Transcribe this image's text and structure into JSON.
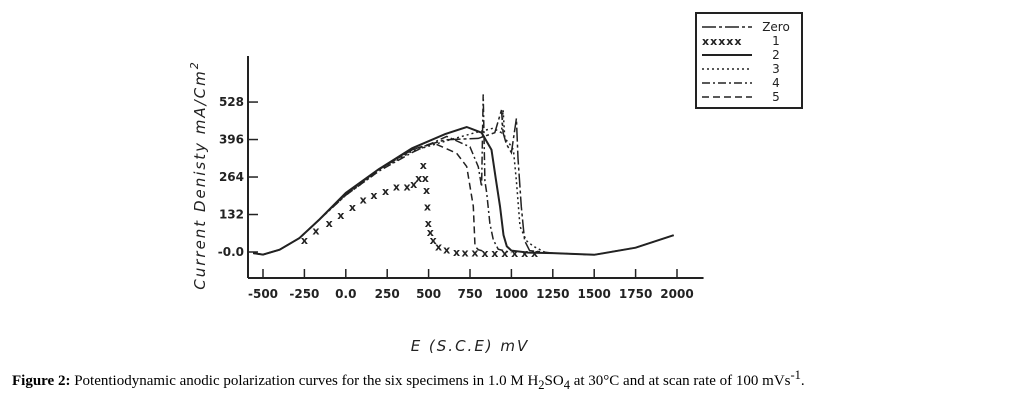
{
  "chart_data": {
    "type": "line",
    "xlabel": "E (S.C.E) mV",
    "ylabel": "Current Denisty mA/Cm",
    "ylabel_sup": "2",
    "xlim": [
      -600,
      2100
    ],
    "ylim": [
      -90,
      690
    ],
    "xticks": [
      -500,
      -250,
      0,
      250,
      500,
      750,
      1000,
      1250,
      1500,
      1750,
      2000
    ],
    "xtick_labels": [
      "-500",
      "-250",
      "0.0",
      "250",
      "500",
      "750",
      "1000",
      "1250",
      "1500",
      "1750",
      "2000"
    ],
    "yticks": [
      0,
      132,
      264,
      396,
      528
    ],
    "ytick_labels": [
      "-0.0",
      "132",
      "264",
      "396",
      "528"
    ],
    "legend_position": "top-right",
    "series": [
      {
        "name": "Zero",
        "style": "longdashdot",
        "x": [
          -560,
          -500,
          -400,
          -280,
          -160,
          0,
          200,
          400,
          600,
          800,
          900,
          940,
          950,
          970,
          1000,
          1030,
          1040,
          1060,
          1080,
          1110,
          1250,
          1500,
          1750,
          1980
        ],
        "y": [
          -4,
          -9,
          8,
          49,
          114,
          205,
          290,
          360,
          395,
          400,
          420,
          500,
          420,
          380,
          350,
          470,
          330,
          160,
          40,
          5,
          -4,
          -10,
          15,
          59
        ]
      },
      {
        "name": "1",
        "style": "x",
        "x": [
          -250,
          -180,
          -100,
          -30,
          40,
          105,
          170,
          240,
          306,
          370,
          410,
          440,
          468,
          480,
          488,
          493,
          498,
          510,
          528,
          560,
          609,
          669,
          720,
          780,
          840,
          900,
          960,
          1020,
          1080,
          1140
        ],
        "y": [
          43,
          75,
          102,
          130,
          158,
          184,
          200,
          215,
          231,
          230,
          240,
          260,
          307,
          260,
          219,
          160,
          102,
          70,
          43,
          20,
          8,
          0,
          -2,
          -2,
          -3,
          -3,
          -3,
          -4,
          -4,
          -4
        ]
      },
      {
        "name": "2",
        "style": "solid",
        "x": [
          -560,
          -500,
          -400,
          -280,
          -160,
          0,
          200,
          400,
          600,
          730,
          820,
          880,
          905,
          931,
          952,
          972,
          1000,
          1100,
          1250,
          1500,
          1750,
          1980
        ],
        "y": [
          -4,
          -9,
          8,
          49,
          114,
          208,
          292,
          365,
          415,
          440,
          420,
          360,
          260,
          161,
          60,
          20,
          5,
          -2,
          -4,
          -10,
          15,
          59
        ]
      },
      {
        "name": "3",
        "style": "dotted",
        "x": [
          -560,
          -500,
          -400,
          -280,
          -160,
          0,
          200,
          400,
          600,
          780,
          891,
          940,
          950,
          960,
          990,
          1012,
          1030,
          1052,
          1090,
          1133,
          1200
        ],
        "y": [
          -4,
          -9,
          8,
          49,
          114,
          200,
          285,
          355,
          390,
          420,
          436,
          420,
          500,
          400,
          380,
          360,
          250,
          90,
          40,
          20,
          0
        ]
      },
      {
        "name": "4",
        "style": "dashdot",
        "x": [
          -560,
          -500,
          -400,
          -280,
          -160,
          0,
          200,
          400,
          609,
          750,
          800,
          820,
          830,
          840,
          851,
          870,
          891,
          920,
          1000
        ],
        "y": [
          -4,
          -9,
          8,
          49,
          114,
          200,
          285,
          350,
          407,
          370,
          300,
          230,
          555,
          250,
          208,
          100,
          43,
          10,
          -2
        ]
      },
      {
        "name": "5",
        "style": "dashed",
        "x": [
          -560,
          -500,
          -400,
          -280,
          -160,
          0,
          200,
          400,
          528,
          669,
          730,
          770,
          780,
          800,
          850
        ],
        "y": [
          -4,
          -9,
          8,
          49,
          114,
          205,
          290,
          360,
          384,
          348,
          301,
          161,
          20,
          8,
          0
        ]
      }
    ]
  },
  "caption": {
    "label": "Figure 2:",
    "text_a": " Potentiodynamic anodic polarization curves for the six specimens in 1.0 M H",
    "sub_1": "2",
    "text_b": "SO",
    "sub_2": "4",
    "text_c": " at 30°C and at scan rate of 100 mVs",
    "sup_1": "-1",
    "text_d": "."
  }
}
